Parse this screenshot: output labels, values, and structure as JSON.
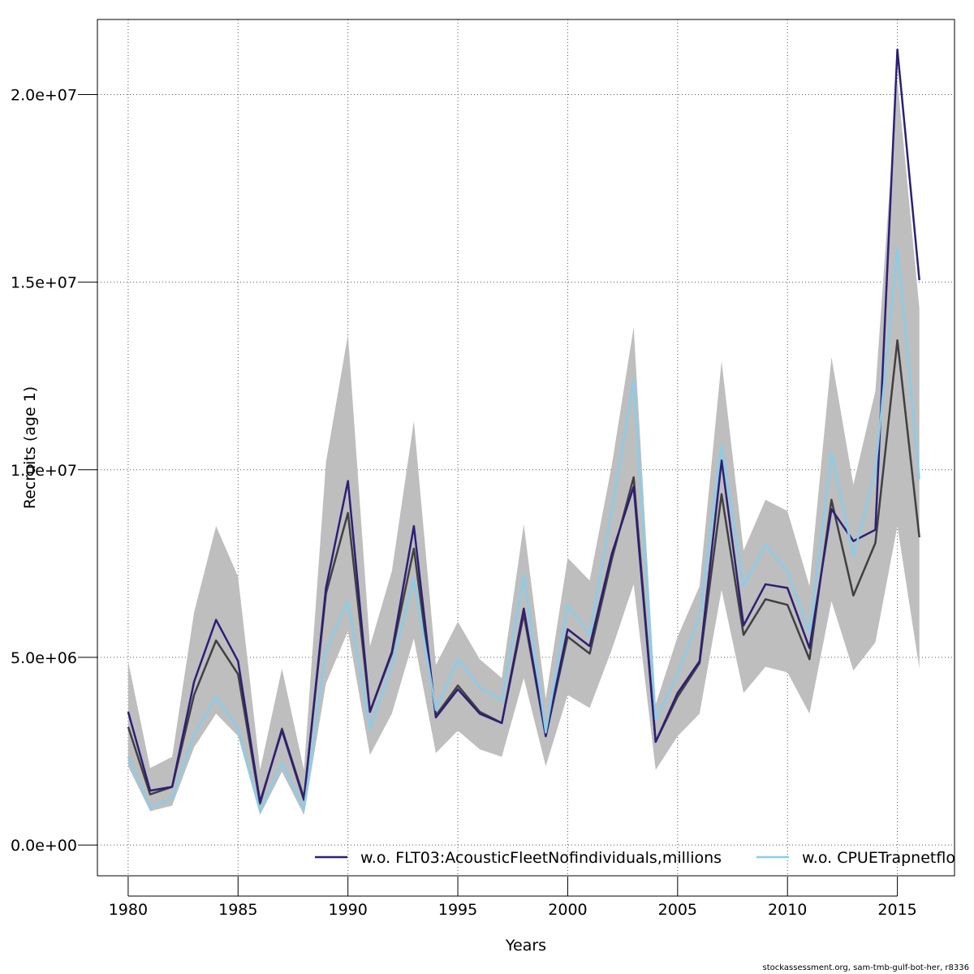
{
  "chart_data": {
    "type": "line",
    "xlabel": "Years",
    "ylabel": "Recruits (age 1)",
    "xlim": [
      1978.6,
      2017.6
    ],
    "ylim": [
      -820000,
      22000000
    ],
    "x_ticks": [
      1980,
      1985,
      1990,
      1995,
      2000,
      2005,
      2010,
      2015
    ],
    "x_tick_labels": [
      "1980",
      "1985",
      "1990",
      "1995",
      "2000",
      "2005",
      "2010",
      "2015"
    ],
    "y_ticks": [
      0,
      5000000,
      10000000,
      15000000,
      20000000
    ],
    "y_tick_labels": [
      "0.0e+00",
      "5.0e+06",
      "1.0e+07",
      "1.5e+07",
      "2.0e+07"
    ],
    "grid": true,
    "legend_position": "bottom",
    "x": [
      1980,
      1981,
      1982,
      1983,
      1984,
      1985,
      1986,
      1987,
      1988,
      1989,
      1990,
      1991,
      1992,
      1993,
      1994,
      1995,
      1996,
      1997,
      1998,
      1999,
      2000,
      2001,
      2002,
      2003,
      2004,
      2005,
      2006,
      2007,
      2008,
      2009,
      2010,
      2011,
      2012,
      2013,
      2014,
      2015,
      2016
    ],
    "band": {
      "color": "#bebebe",
      "lower": [
        2100000,
        900000,
        1050000,
        2600000,
        3500000,
        2900000,
        800000,
        1950000,
        800000,
        4300000,
        5700000,
        2400000,
        3500000,
        5500000,
        2450000,
        3050000,
        2550000,
        2350000,
        4450000,
        2100000,
        4000000,
        3650000,
        5200000,
        6950000,
        2000000,
        2900000,
        3500000,
        6800000,
        4050000,
        4750000,
        4600000,
        3500000,
        6500000,
        4650000,
        5400000,
        8500000,
        4700000
      ],
      "upper": [
        4900000,
        2050000,
        2350000,
        6200000,
        8500000,
        7150000,
        2000000,
        4700000,
        2000000,
        10200000,
        13600000,
        5300000,
        7300000,
        11300000,
        4800000,
        5950000,
        4950000,
        4450000,
        8550000,
        3900000,
        7650000,
        7050000,
        10100000,
        13800000,
        3750000,
        5550000,
        6900000,
        12900000,
        7850000,
        9200000,
        8900000,
        6900000,
        13000000,
        9600000,
        12100000,
        20400000,
        14300000
      ]
    },
    "series": [
      {
        "color": "#404040",
        "values": [
          3150000,
          1350000,
          1550000,
          4000000,
          5450000,
          4550000,
          1100000,
          3100000,
          1250000,
          6700000,
          8850000,
          3550000,
          5100000,
          7900000,
          3450000,
          4250000,
          3550000,
          3250000,
          6150000,
          2900000,
          5550000,
          5100000,
          7600000,
          9800000,
          2750000,
          3950000,
          4850000,
          9350000,
          5600000,
          6550000,
          6400000,
          4950000,
          9200000,
          6650000,
          8050000,
          13450000,
          8200000
        ]
      },
      {
        "name": "w.o. FLT03:AcousticFleetNofindividuals,millions",
        "color": "#2d1e78",
        "values": [
          3550000,
          1450000,
          1550000,
          4350000,
          6000000,
          4900000,
          1150000,
          3050000,
          1200000,
          6850000,
          9700000,
          3550000,
          5150000,
          8500000,
          3400000,
          4150000,
          3500000,
          3250000,
          6300000,
          2900000,
          5750000,
          5300000,
          7750000,
          9550000,
          2750000,
          4050000,
          4900000,
          10250000,
          5850000,
          6950000,
          6850000,
          5250000,
          8950000,
          8100000,
          8400000,
          21200000,
          15050000
        ]
      },
      {
        "name": "w.o. CPUETrapnetflo",
        "color": "#87ceeb",
        "values": [
          2350000,
          1000000,
          1250000,
          2950000,
          3950000,
          3100000,
          900000,
          2200000,
          950000,
          5200000,
          6500000,
          3100000,
          4800000,
          7100000,
          3600000,
          4950000,
          4200000,
          3850000,
          7200000,
          3000000,
          6400000,
          5600000,
          8900000,
          12400000,
          3350000,
          4550000,
          6100000,
          10650000,
          6900000,
          8000000,
          7300000,
          5650000,
          10450000,
          7700000,
          9950000,
          15900000,
          9750000
        ]
      }
    ]
  },
  "footer": "stockassessment.org, sam-tmb-gulf-bot-her, r8336"
}
